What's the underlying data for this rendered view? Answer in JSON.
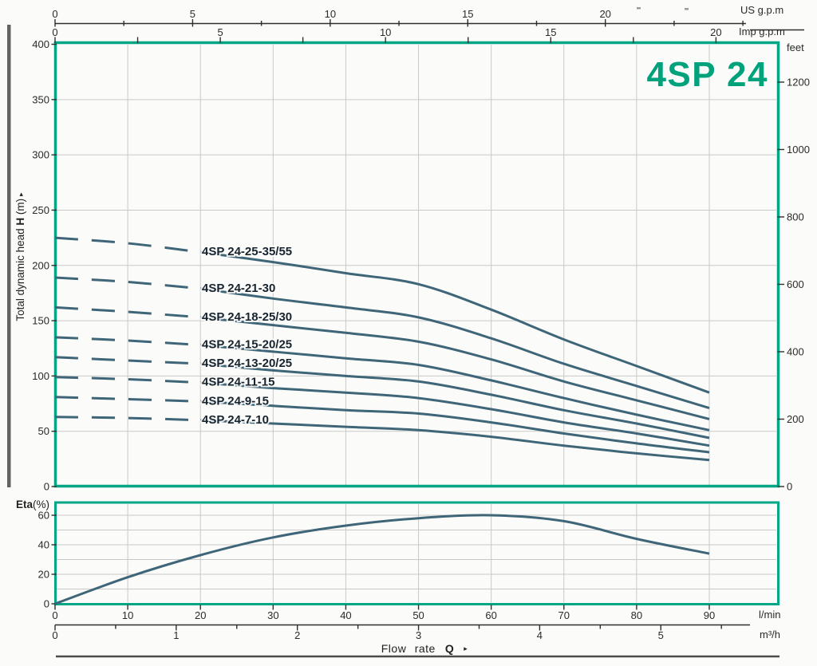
{
  "title": "4SP 24",
  "colors": {
    "accent_teal": "#00a685",
    "title_teal": "#00a27b",
    "curve": "#3f6678",
    "grid": "#c9c9c9",
    "text": "#2a2a2a",
    "curve_label_text": "#17242f",
    "margin_bar": "#636363",
    "bottom_rule": "#4c4c4c"
  },
  "top_axes": {
    "us": {
      "unit": "US g.p.m",
      "ticks": [
        0,
        5,
        10,
        15,
        20
      ],
      "minor_ticks": [
        2.5,
        7.5,
        12.5,
        17.5,
        22.5,
        25
      ],
      "lmin_per_unit": 3.785
    },
    "imp": {
      "unit": "Imp g.p.m",
      "ticks": [
        0,
        5,
        10,
        15,
        20
      ],
      "minor_step": 2.5,
      "lmin_per_unit": 4.546
    }
  },
  "left_axis": {
    "label_prefix": "Total dynamic head ",
    "label_symbol": "H",
    "label_unit": " (m)",
    "arrow": "▸",
    "ticks": [
      0,
      50,
      100,
      150,
      200,
      250,
      300,
      350,
      400
    ]
  },
  "right_axis": {
    "unit": "feet",
    "ticks": [
      0,
      200,
      400,
      600,
      800,
      1000,
      1200
    ]
  },
  "eta_axis": {
    "label_bold": "Eta",
    "label_rest": "(%)",
    "ticks": [
      0,
      20,
      40,
      60
    ],
    "grid_step": 10
  },
  "bottom_axes": {
    "lmin": {
      "unit": "l/min",
      "ticks": [
        0,
        10,
        20,
        30,
        40,
        50,
        60,
        70,
        80,
        90
      ]
    },
    "m3h": {
      "unit": "m³/h",
      "ticks": [
        0,
        1,
        2,
        3,
        4,
        5
      ],
      "lmin_per_unit": 16.667
    }
  },
  "flow_label": {
    "prefix": "Flow rate",
    "symbol": "Q",
    "arrow": "▸"
  },
  "chart_data": [
    {
      "type": "line",
      "title": "4SP 24",
      "xlabel": "Flow rate Q (l/min)",
      "ylabel": "Total dynamic head H (m)",
      "ylabel_right": "feet",
      "x": [
        0,
        10,
        20,
        30,
        40,
        50,
        60,
        70,
        80,
        90
      ],
      "x_unit": "l/min",
      "xlim": [
        0,
        99.4
      ],
      "ylim": [
        0,
        400
      ],
      "grid": true,
      "legend_position": "inline-labels",
      "dashed_below_x": 20,
      "series": [
        {
          "name": "4SP 24-25-35/55",
          "values": [
            225,
            220,
            212,
            203,
            193,
            183,
            160,
            133,
            109,
            85
          ]
        },
        {
          "name": "4SP 24-21-30",
          "values": [
            189,
            185,
            179,
            170,
            162,
            153,
            134,
            111,
            91,
            71
          ]
        },
        {
          "name": "4SP 24-18-25/30",
          "values": [
            162,
            158,
            153,
            146,
            139,
            131,
            115,
            95,
            78,
            61
          ]
        },
        {
          "name": "4SP 24-15-20/25",
          "values": [
            135,
            132,
            128,
            122,
            116,
            110,
            96,
            80,
            65,
            51
          ]
        },
        {
          "name": "4SP 24-13-20/25",
          "values": [
            117,
            114,
            111,
            105,
            100,
            95,
            83,
            69,
            57,
            44
          ]
        },
        {
          "name": "4SP 24-11-15",
          "values": [
            99,
            97,
            94,
            89,
            85,
            80,
            70,
            58,
            48,
            37
          ]
        },
        {
          "name": "4SP 24-9-15",
          "values": [
            81,
            79,
            77,
            73,
            69,
            66,
            58,
            48,
            39,
            31
          ]
        },
        {
          "name": "4SP 24-7-10",
          "values": [
            63,
            62,
            60,
            57,
            54,
            51,
            45,
            37,
            30,
            24
          ]
        }
      ]
    },
    {
      "type": "line",
      "ylabel": "Eta(%)",
      "x": [
        0,
        10,
        20,
        30,
        40,
        50,
        60,
        70,
        80,
        90
      ],
      "x_unit": "l/min",
      "xlim": [
        0,
        99.4
      ],
      "ylim": [
        0,
        68
      ],
      "grid": true,
      "values": [
        0,
        18,
        33,
        45,
        53,
        58,
        60,
        56,
        44,
        34
      ]
    }
  ]
}
